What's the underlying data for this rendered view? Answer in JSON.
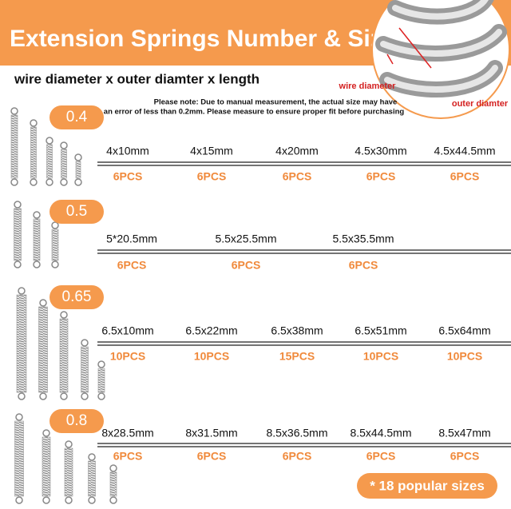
{
  "header": {
    "title": "Extension Springs Number & Size",
    "subtitle": "wire diameter x outer diamter x length"
  },
  "diagram": {
    "wire_label": "wire diameter",
    "outer_label": "outer diamter"
  },
  "note": [
    "Please note: Due to manual measurement, the actual size may have",
    "an error of less than 0.2mm.  Please measure to ensure proper fit before purchasing"
  ],
  "groups": [
    {
      "diameter": "0.4",
      "items": [
        {
          "size": "4x10mm",
          "qty": "6PCS"
        },
        {
          "size": "4x15mm",
          "qty": "6PCS"
        },
        {
          "size": "4x20mm",
          "qty": "6PCS"
        },
        {
          "size": "4.5x30mm",
          "qty": "6PCS"
        },
        {
          "size": "4.5x44.5mm",
          "qty": "6PCS"
        }
      ]
    },
    {
      "diameter": "0.5",
      "items": [
        {
          "size": "5*20.5mm",
          "qty": "6PCS"
        },
        {
          "size": "5.5x25.5mm",
          "qty": "6PCS"
        },
        {
          "size": "5.5x35.5mm",
          "qty": "6PCS"
        }
      ]
    },
    {
      "diameter": "0.65",
      "items": [
        {
          "size": "6.5x10mm",
          "qty": "10PCS"
        },
        {
          "size": "6.5x22mm",
          "qty": "10PCS"
        },
        {
          "size": "6.5x38mm",
          "qty": "15PCS"
        },
        {
          "size": "6.5x51mm",
          "qty": "10PCS"
        },
        {
          "size": "6.5x64mm",
          "qty": "10PCS"
        }
      ]
    },
    {
      "diameter": "0.8",
      "items": [
        {
          "size": "8x28.5mm",
          "qty": "6PCS"
        },
        {
          "size": "8x31.5mm",
          "qty": "6PCS"
        },
        {
          "size": "8.5x36.5mm",
          "qty": "6PCS"
        },
        {
          "size": "8.5x44.5mm",
          "qty": "6PCS"
        },
        {
          "size": "8.5x47mm",
          "qty": "6PCS"
        }
      ]
    }
  ],
  "badge": "* 18 popular sizes"
}
